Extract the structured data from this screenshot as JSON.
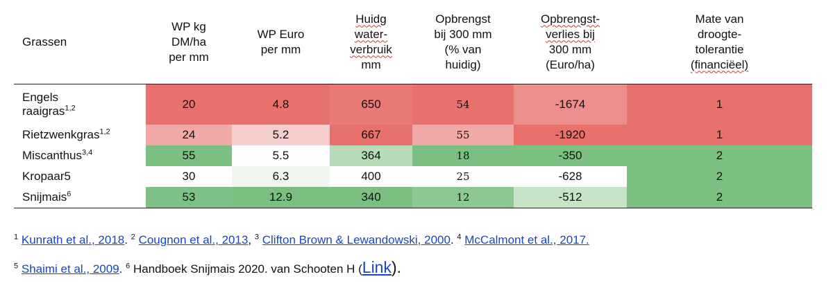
{
  "header": {
    "grassen": "Grassen",
    "wp_kg": [
      "WP kg",
      "DM/ha",
      "per mm"
    ],
    "wp_euro": [
      "WP Euro",
      "per mm"
    ],
    "huidig": [
      "Huidg",
      "water-",
      "verbruik",
      "mm"
    ],
    "opbrengst": [
      "Opbrengst",
      "bij 300 mm",
      "(% van",
      "huidig)"
    ],
    "verlies": [
      "Opbrengst-",
      "verlies bij",
      "300 mm",
      "(Euro/ha)"
    ],
    "mate": [
      "Mate van",
      "droogte-",
      "tolerantie",
      "(financiëel)"
    ]
  },
  "rows": [
    {
      "name_a": "Engels",
      "name_b": "raaigras",
      "sup": "1,2",
      "wp_kg": "20",
      "wp_euro": "4.8",
      "water": "650",
      "opbrengst": "54",
      "verlies": "-1674",
      "mate": "1",
      "colors": [
        "#e8716e",
        "#e8716e",
        "#ea7a76",
        "#e8716e",
        "#ec8e8b",
        "#e8716e"
      ]
    },
    {
      "name_a": "Rietzwenkgras",
      "name_b": "",
      "sup": "1,2",
      "wp_kg": "24",
      "wp_euro": "5.2",
      "water": "667",
      "opbrengst": "55",
      "verlies": "-1920",
      "mate": "1",
      "colors": [
        "#f0a9a7",
        "#f6cdcc",
        "#e8716e",
        "#f0a9a7",
        "#e8716e",
        "#e8716e"
      ]
    },
    {
      "name_a": "Miscanthus",
      "name_b": "",
      "sup": "3,4",
      "wp_kg": "55",
      "wp_euro": "5.5",
      "water": "364",
      "opbrengst": "18",
      "verlies": "-350",
      "mate": "2",
      "colors": [
        "#7bbf81",
        "#ffffff",
        "#b6dbb9",
        "#7bbf81",
        "#7bbf81",
        "#7bbf81"
      ]
    },
    {
      "name_a": "Kropaar5",
      "name_b": "",
      "sup": "",
      "wp_kg": "30",
      "wp_euro": "6.3",
      "water": "400",
      "opbrengst": "25",
      "verlies": "-628",
      "mate": "2",
      "colors": [
        "#ffffff",
        "#eff6ef",
        "#ffffff",
        "#ffffff",
        "#ffffff",
        "#7bbf81"
      ]
    },
    {
      "name_a": "Snijmais",
      "name_b": "",
      "sup": "6",
      "wp_kg": "53",
      "wp_euro": "12.9",
      "water": "340",
      "opbrengst": "12",
      "verlies": "-512",
      "mate": "2",
      "colors": [
        "#7fc185",
        "#7bbf81",
        "#7bbf81",
        "#8dc891",
        "#c7e4c9",
        "#7bbf81"
      ]
    }
  ],
  "footnotes": {
    "line1": [
      {
        "sup": "1",
        "link": "Kunrath et al., 2018",
        "after": ".  "
      },
      {
        "sup": "2",
        "link": "Cougnon et al., 2013",
        "after": ", "
      },
      {
        "sup": "3",
        "link": "Clifton Brown & Lewandowski, 2000",
        "after": ". "
      },
      {
        "sup": "4",
        "link": "McCalmont et al., 2017.",
        "after": ""
      }
    ],
    "line2": {
      "sup5": "5",
      "link5": "Shaimi et al., 2009",
      "after5": ". ",
      "sup6": "6",
      "text6": " Handboek Snijmais 2020. van Schooten H (",
      "link6": "Link",
      "close": ")."
    }
  }
}
